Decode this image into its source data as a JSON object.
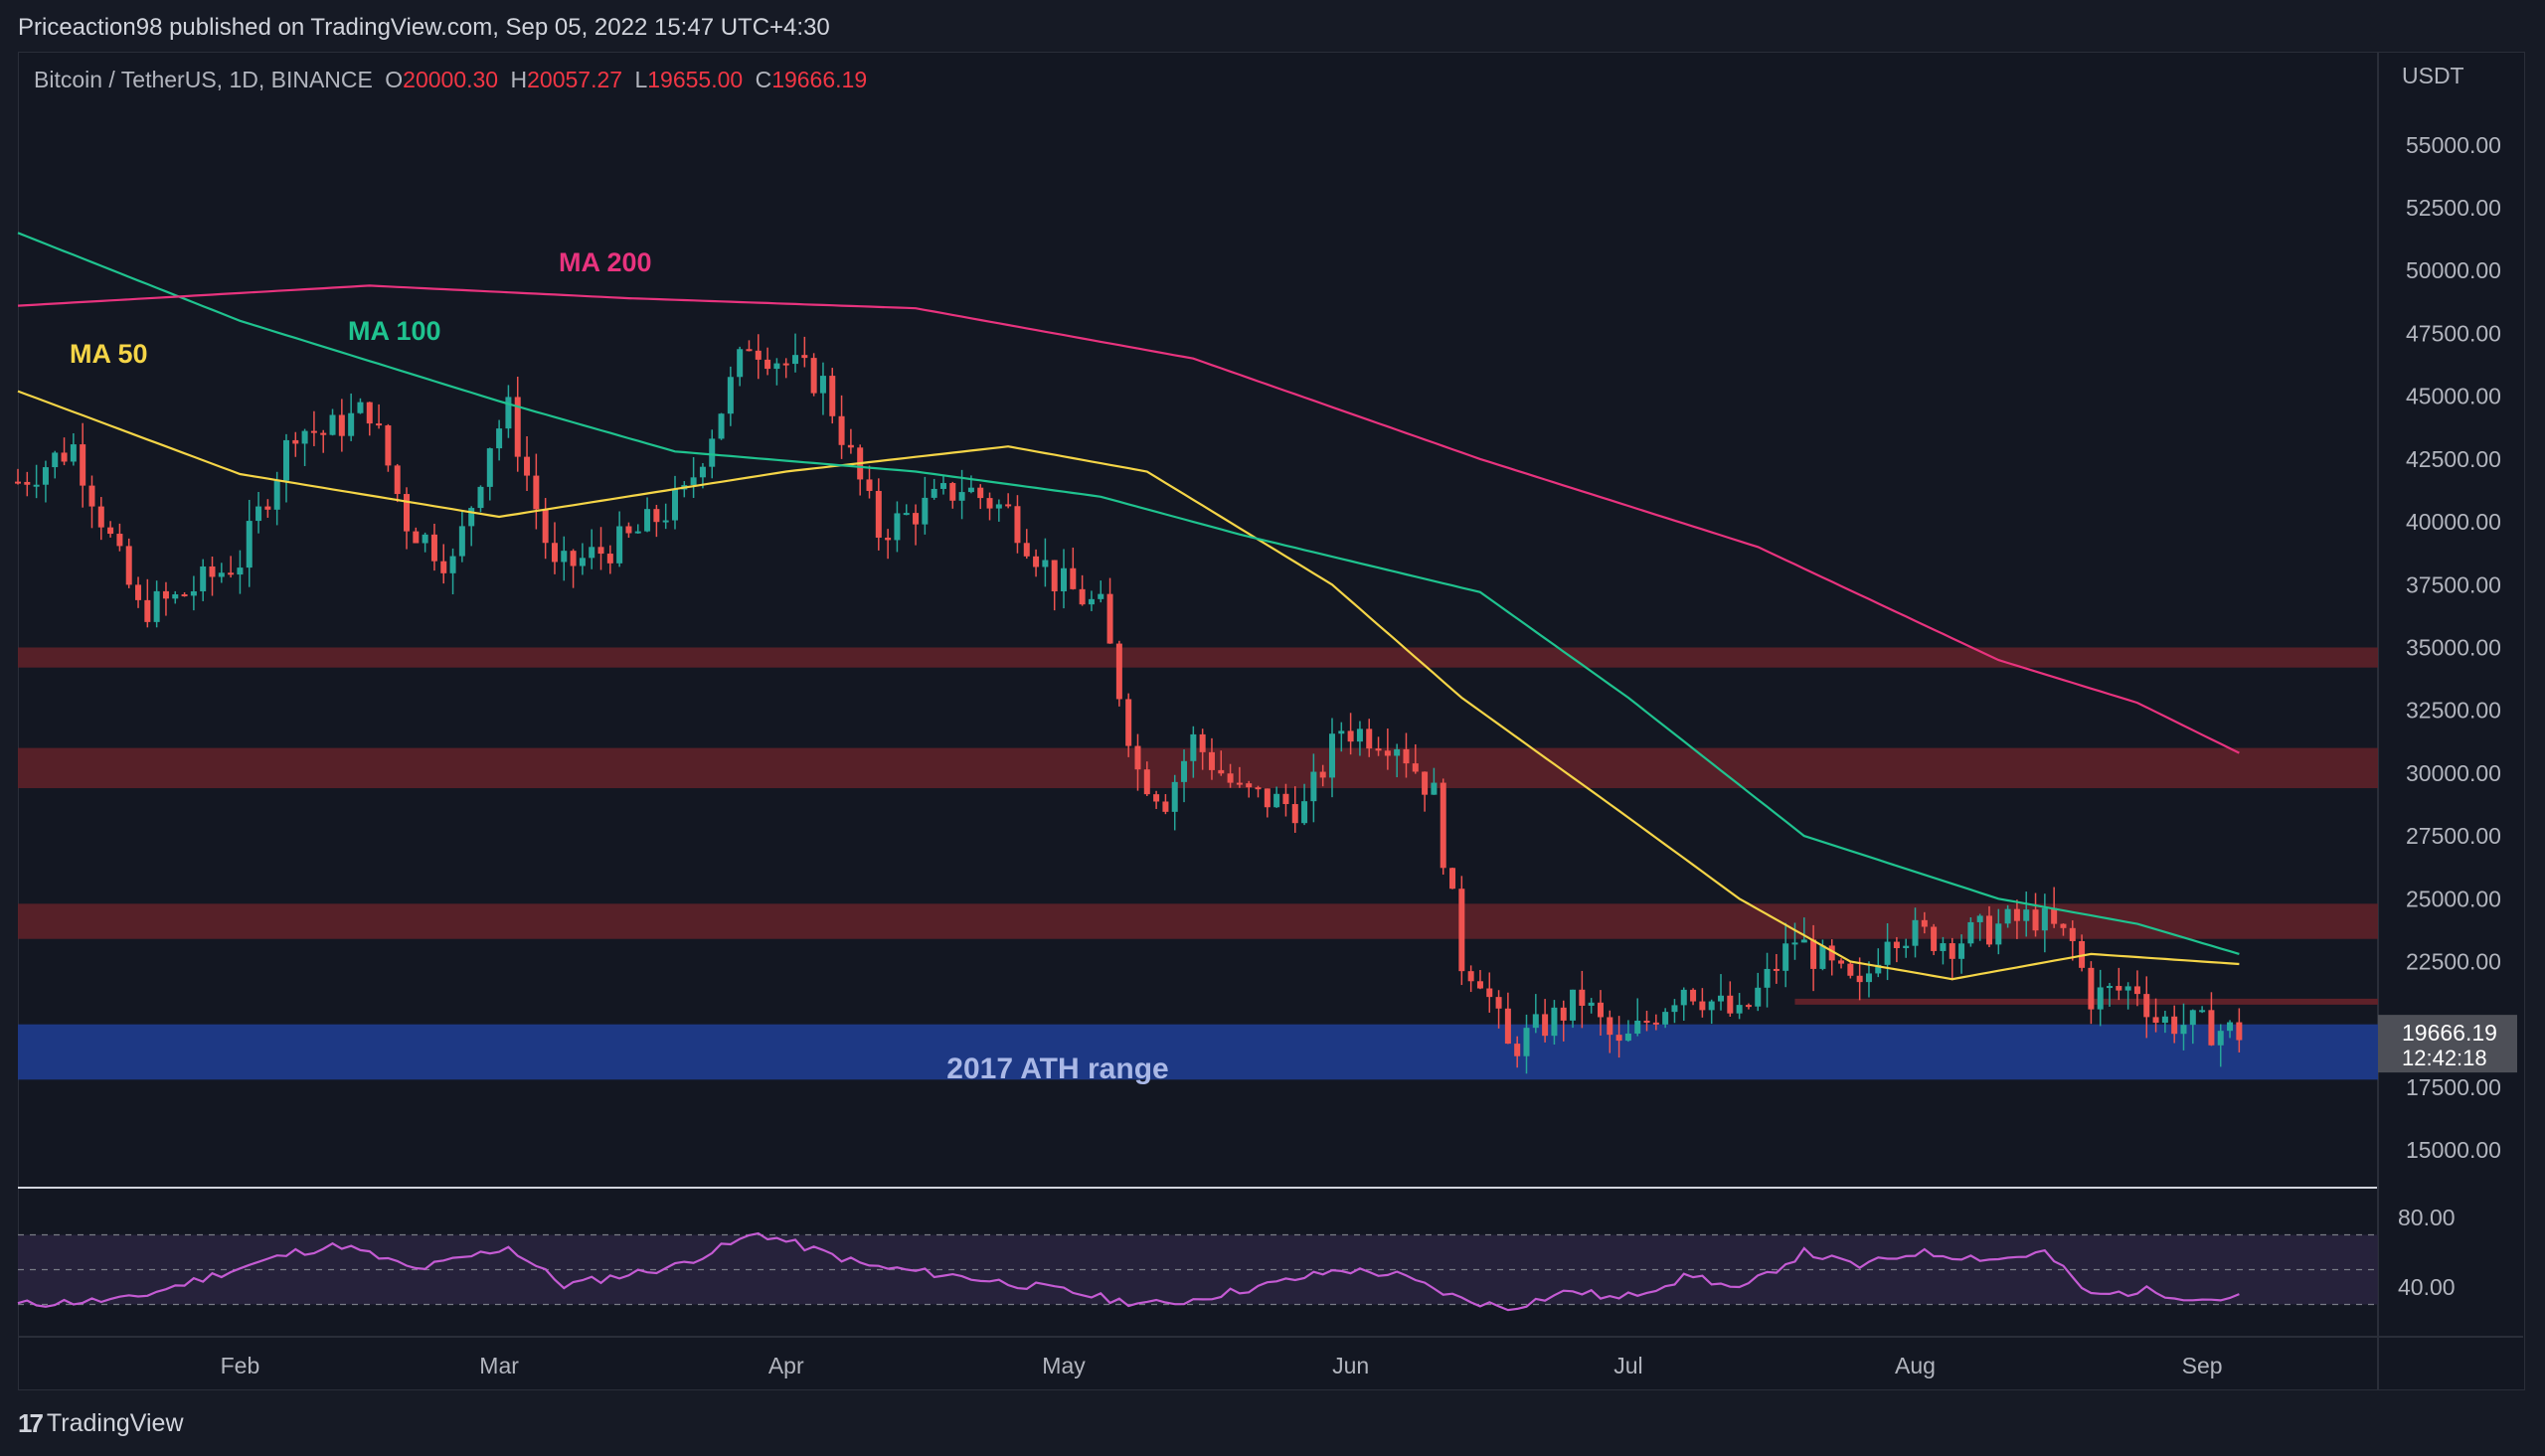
{
  "header": {
    "published_line": "Priceaction98 published on TradingView.com, Sep 05, 2022 15:47 UTC+4:30"
  },
  "legend": {
    "symbol": "Bitcoin / TetherUS, 1D, BINANCE",
    "o_key": "O",
    "o_val": "20000.30",
    "h_key": "H",
    "h_val": "20057.27",
    "l_key": "L",
    "l_val": "19655.00",
    "c_key": "C",
    "c_val": "19666.19"
  },
  "footer": {
    "brand": "TradingView"
  },
  "colors": {
    "up": "#26a69a",
    "down": "#ef5350",
    "ma50": "#f5d547",
    "ma100": "#1fc38f",
    "ma200": "#e8337e",
    "zone": "#5e2129",
    "ath_zone": "#1e3a8a",
    "rsi": "#c45bd3"
  },
  "chart_data": {
    "type": "candlestick",
    "title": "Bitcoin / TetherUS, 1D, BINANCE",
    "currency": "USDT",
    "y_ticks": [
      "55000.00",
      "52500.00",
      "50000.00",
      "47500.00",
      "45000.00",
      "42500.00",
      "40000.00",
      "37500.00",
      "35000.00",
      "32500.00",
      "30000.00",
      "27500.00",
      "25000.00",
      "22500.00",
      "17500.00",
      "15000.00"
    ],
    "ylim": [
      13500,
      58000
    ],
    "x_month_labels": [
      {
        "label": "Feb",
        "date": "2022-02-01"
      },
      {
        "label": "Mar",
        "date": "2022-03-01"
      },
      {
        "label": "Apr",
        "date": "2022-04-01"
      },
      {
        "label": "May",
        "date": "2022-05-01"
      },
      {
        "label": "Jun",
        "date": "2022-06-01"
      },
      {
        "label": "Jul",
        "date": "2022-07-01"
      },
      {
        "label": "Aug",
        "date": "2022-08-01"
      },
      {
        "label": "Sep",
        "date": "2022-09-01"
      }
    ],
    "x_range": [
      "2022-01-08",
      "2022-09-20"
    ],
    "last_price": {
      "value": "19666.19",
      "countdown": "12:42:18"
    },
    "close_path": [
      [
        "2022-01-08",
        41600
      ],
      [
        "2022-01-14",
        43000
      ],
      [
        "2022-01-21",
        36500
      ],
      [
        "2022-01-25",
        36900
      ],
      [
        "2022-02-01",
        38500
      ],
      [
        "2022-02-07",
        43800
      ],
      [
        "2022-02-10",
        43500
      ],
      [
        "2022-02-15",
        44500
      ],
      [
        "2022-02-19",
        40000
      ],
      [
        "2022-02-24",
        38300
      ],
      [
        "2022-02-28",
        43200
      ],
      [
        "2022-03-02",
        44400
      ],
      [
        "2022-03-07",
        38000
      ],
      [
        "2022-03-15",
        39300
      ],
      [
        "2022-03-21",
        41000
      ],
      [
        "2022-03-28",
        47200
      ],
      [
        "2022-04-01",
        46300
      ],
      [
        "2022-04-05",
        45500
      ],
      [
        "2022-04-11",
        39600
      ],
      [
        "2022-04-20",
        41400
      ],
      [
        "2022-04-25",
        40400
      ],
      [
        "2022-04-30",
        37700
      ],
      [
        "2022-05-05",
        36500
      ],
      [
        "2022-05-09",
        30100
      ],
      [
        "2022-05-12",
        29000
      ],
      [
        "2022-05-15",
        31300
      ],
      [
        "2022-05-20",
        29200
      ],
      [
        "2022-05-27",
        28600
      ],
      [
        "2022-05-31",
        31800
      ],
      [
        "2022-06-06",
        31300
      ],
      [
        "2022-06-10",
        29100
      ],
      [
        "2022-06-13",
        22500
      ],
      [
        "2022-06-15",
        22000
      ],
      [
        "2022-06-18",
        19000
      ],
      [
        "2022-06-22",
        20000
      ],
      [
        "2022-06-26",
        21000
      ],
      [
        "2022-06-30",
        19000
      ],
      [
        "2022-07-07",
        21600
      ],
      [
        "2022-07-13",
        20200
      ],
      [
        "2022-07-19",
        23400
      ],
      [
        "2022-07-26",
        21200
      ],
      [
        "2022-07-29",
        23800
      ],
      [
        "2022-08-05",
        23300
      ],
      [
        "2022-08-10",
        23900
      ],
      [
        "2022-08-14",
        24300
      ],
      [
        "2022-08-18",
        23200
      ],
      [
        "2022-08-20",
        21100
      ],
      [
        "2022-08-25",
        21500
      ],
      [
        "2022-08-27",
        20200
      ],
      [
        "2022-09-05",
        19666
      ]
    ],
    "series": [
      {
        "name": "MA 50",
        "values": [
          [
            "2022-01-08",
            45200
          ],
          [
            "2022-02-01",
            41900
          ],
          [
            "2022-03-01",
            40200
          ],
          [
            "2022-04-01",
            42000
          ],
          [
            "2022-04-25",
            43000
          ],
          [
            "2022-05-10",
            42000
          ],
          [
            "2022-05-30",
            37500
          ],
          [
            "2022-06-13",
            33000
          ],
          [
            "2022-06-30",
            28500
          ],
          [
            "2022-07-13",
            25000
          ],
          [
            "2022-07-25",
            22500
          ],
          [
            "2022-08-05",
            21800
          ],
          [
            "2022-08-20",
            22800
          ],
          [
            "2022-09-05",
            22400
          ]
        ]
      },
      {
        "name": "MA 100",
        "values": [
          [
            "2022-01-08",
            51500
          ],
          [
            "2022-02-01",
            48000
          ],
          [
            "2022-03-01",
            44800
          ],
          [
            "2022-03-20",
            42800
          ],
          [
            "2022-04-15",
            42000
          ],
          [
            "2022-05-05",
            41000
          ],
          [
            "2022-05-20",
            39500
          ],
          [
            "2022-06-15",
            37200
          ],
          [
            "2022-07-01",
            33000
          ],
          [
            "2022-07-20",
            27500
          ],
          [
            "2022-08-10",
            25000
          ],
          [
            "2022-08-25",
            24000
          ],
          [
            "2022-09-05",
            22800
          ]
        ]
      },
      {
        "name": "MA 200",
        "values": [
          [
            "2022-01-08",
            48600
          ],
          [
            "2022-02-15",
            49400
          ],
          [
            "2022-03-15",
            48900
          ],
          [
            "2022-04-15",
            48500
          ],
          [
            "2022-05-15",
            46500
          ],
          [
            "2022-06-15",
            42500
          ],
          [
            "2022-07-15",
            39000
          ],
          [
            "2022-08-10",
            34500
          ],
          [
            "2022-08-25",
            32800
          ],
          [
            "2022-09-05",
            30800
          ]
        ]
      }
    ],
    "annotations": [
      {
        "label": "MA 50",
        "color": "#f5d547"
      },
      {
        "label": "MA 100",
        "color": "#1fc38f"
      },
      {
        "label": "MA 200",
        "color": "#e8337e"
      },
      {
        "label": "2017 ATH range",
        "color": "#aab8e6"
      }
    ],
    "zones": [
      {
        "from": 34200,
        "to": 35000,
        "kind": "resistance"
      },
      {
        "from": 29400,
        "to": 31000,
        "kind": "resistance"
      },
      {
        "from": 23400,
        "to": 24800,
        "kind": "resistance"
      },
      {
        "from": 17800,
        "to": 20000,
        "kind": "support",
        "label": "2017 ATH range"
      }
    ],
    "support_line": {
      "value": 20900,
      "from": "2022-07-19",
      "to": "2022-09-05"
    },
    "rsi": {
      "ticks": [
        "80.00",
        "40.00"
      ],
      "upper": 70,
      "lower": 30,
      "values": [
        [
          "2022-01-08",
          30
        ],
        [
          "2022-01-20",
          33
        ],
        [
          "2022-02-07",
          60
        ],
        [
          "2022-02-12",
          64
        ],
        [
          "2022-02-20",
          50
        ],
        [
          "2022-03-02",
          63
        ],
        [
          "2022-03-08",
          41
        ],
        [
          "2022-03-20",
          52
        ],
        [
          "2022-03-29",
          71
        ],
        [
          "2022-04-10",
          52
        ],
        [
          "2022-04-20",
          46
        ],
        [
          "2022-05-01",
          38
        ],
        [
          "2022-05-07",
          32
        ],
        [
          "2022-05-12",
          30
        ],
        [
          "2022-05-20",
          38
        ],
        [
          "2022-05-31",
          50
        ],
        [
          "2022-06-06",
          47
        ],
        [
          "2022-06-13",
          33
        ],
        [
          "2022-06-18",
          28
        ],
        [
          "2022-06-25",
          38
        ],
        [
          "2022-06-30",
          33
        ],
        [
          "2022-07-08",
          47
        ],
        [
          "2022-07-13",
          38
        ],
        [
          "2022-07-20",
          60
        ],
        [
          "2022-07-26",
          52
        ],
        [
          "2022-08-01",
          60
        ],
        [
          "2022-08-10",
          56
        ],
        [
          "2022-08-15",
          60
        ],
        [
          "2022-08-20",
          35
        ],
        [
          "2022-08-26",
          38
        ],
        [
          "2022-09-01",
          33
        ],
        [
          "2022-09-05",
          34
        ]
      ]
    }
  }
}
